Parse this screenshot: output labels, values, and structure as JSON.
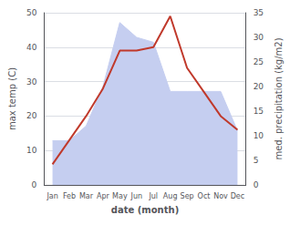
{
  "chart_data": {
    "type": "line",
    "categories": [
      "Jan",
      "Feb",
      "Mar",
      "Apr",
      "May",
      "Jun",
      "Jul",
      "Aug",
      "Sep",
      "Oct",
      "Nov",
      "Dec"
    ],
    "xlabel": "date (month)",
    "ylabel": "max temp (C)",
    "y2label": "med. precipitation (kg/m2)",
    "series": [
      {
        "type": "area",
        "color": "#c5cef0",
        "axis": "y2",
        "values": [
          9,
          9,
          12,
          20,
          33,
          30,
          29,
          19,
          19,
          19,
          19,
          11
        ]
      },
      {
        "type": "line",
        "color": "#c0392b",
        "values": [
          6,
          13,
          20,
          28,
          39,
          39,
          40,
          49,
          34,
          27,
          20,
          16
        ]
      }
    ],
    "ylim": [
      0,
      50
    ],
    "yticks": [
      0,
      10,
      20,
      30,
      40,
      50
    ],
    "y2lim": [
      0,
      35
    ],
    "y2ticks": [
      0,
      5,
      10,
      15,
      20,
      25,
      30,
      35
    ],
    "grid": true
  }
}
